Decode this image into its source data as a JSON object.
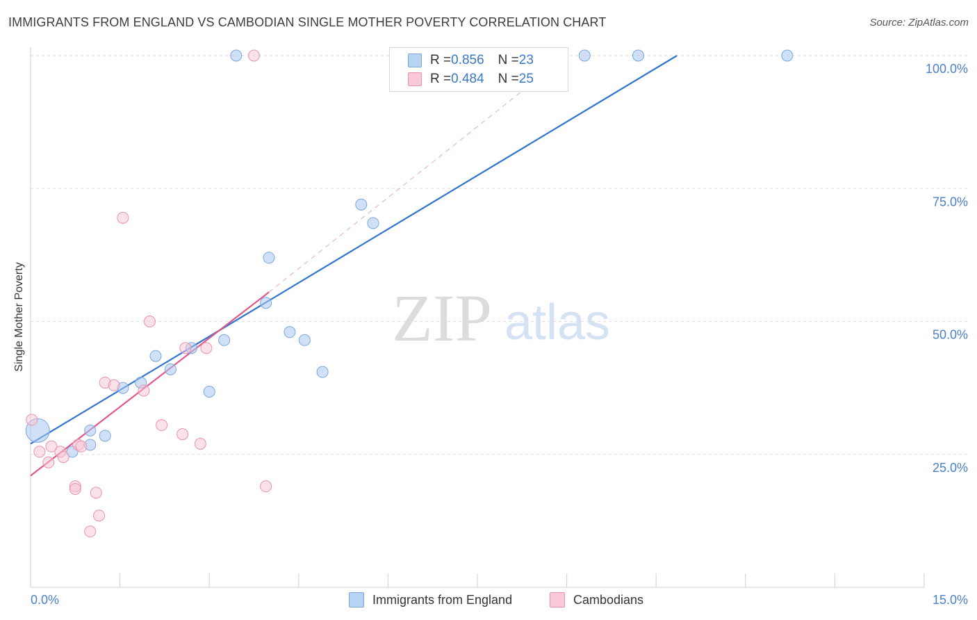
{
  "title": "IMMIGRANTS FROM ENGLAND VS CAMBODIAN SINGLE MOTHER POVERTY CORRELATION CHART",
  "source": "Source: ZipAtlas.com",
  "watermark": {
    "zip": "ZIP",
    "atlas": "atlas"
  },
  "legend_top": [
    {
      "r_label": "R = ",
      "r_value": "0.856",
      "n_label": "N = ",
      "n_value": "23"
    },
    {
      "r_label": "R = ",
      "r_value": "0.484",
      "n_label": "N = ",
      "n_value": "25"
    }
  ],
  "chart_data": {
    "type": "scatter",
    "title": "IMMIGRANTS FROM ENGLAND VS CAMBODIAN SINGLE MOTHER POVERTY CORRELATION CHART",
    "xlabel": "",
    "ylabel": "Single Mother Poverty",
    "xlim": [
      0,
      15
    ],
    "ylim": [
      0,
      103
    ],
    "x_tick_labels": [
      "0.0%",
      "15.0%"
    ],
    "y_ticks": [
      25,
      50,
      75,
      100
    ],
    "y_tick_labels": [
      "25.0%",
      "50.0%",
      "75.0%",
      "100.0%"
    ],
    "grid": true,
    "legend_position": "bottom",
    "series": [
      {
        "name": "Immigrants from England",
        "color": "#a9c8f0",
        "stroke": "#7aa6dc",
        "line_color": "#2f74cc",
        "r": "0.856",
        "n": "23",
        "points": [
          {
            "x": 0.12,
            "y": 29.5,
            "big": true
          },
          {
            "x": 0.7,
            "y": 25.5
          },
          {
            "x": 1.0,
            "y": 26.8
          },
          {
            "x": 1.0,
            "y": 29.5
          },
          {
            "x": 1.25,
            "y": 28.5
          },
          {
            "x": 1.55,
            "y": 37.5
          },
          {
            "x": 1.85,
            "y": 38.5
          },
          {
            "x": 2.1,
            "y": 43.5
          },
          {
            "x": 2.35,
            "y": 41.0
          },
          {
            "x": 2.7,
            "y": 45.0
          },
          {
            "x": 3.0,
            "y": 36.8
          },
          {
            "x": 3.25,
            "y": 46.5
          },
          {
            "x": 3.45,
            "y": 100.0
          },
          {
            "x": 3.95,
            "y": 53.5
          },
          {
            "x": 4.0,
            "y": 62.0
          },
          {
            "x": 4.35,
            "y": 48.0
          },
          {
            "x": 4.6,
            "y": 46.5
          },
          {
            "x": 4.9,
            "y": 40.5
          },
          {
            "x": 5.55,
            "y": 72.0
          },
          {
            "x": 5.75,
            "y": 68.5
          },
          {
            "x": 9.3,
            "y": 100.0
          },
          {
            "x": 10.2,
            "y": 100.0
          },
          {
            "x": 12.7,
            "y": 100.0
          }
        ],
        "trend": {
          "x0": 0.0,
          "y0": 27.0,
          "x1": 10.85,
          "y1": 100.0
        }
      },
      {
        "name": "Cambodians",
        "color": "#f7c3d3",
        "stroke": "#e892ad",
        "line_color": "#e0578a",
        "r": "0.484",
        "n": "25",
        "points": [
          {
            "x": 0.02,
            "y": 31.5
          },
          {
            "x": 0.15,
            "y": 25.5
          },
          {
            "x": 0.3,
            "y": 23.5
          },
          {
            "x": 0.35,
            "y": 26.5
          },
          {
            "x": 0.5,
            "y": 25.5
          },
          {
            "x": 0.55,
            "y": 24.5
          },
          {
            "x": 0.75,
            "y": 19.0
          },
          {
            "x": 0.75,
            "y": 18.5
          },
          {
            "x": 0.8,
            "y": 26.8
          },
          {
            "x": 0.85,
            "y": 26.5
          },
          {
            "x": 1.0,
            "y": 10.5
          },
          {
            "x": 1.1,
            "y": 17.8
          },
          {
            "x": 1.15,
            "y": 13.5
          },
          {
            "x": 1.25,
            "y": 38.5
          },
          {
            "x": 1.4,
            "y": 38.0
          },
          {
            "x": 1.55,
            "y": 69.5
          },
          {
            "x": 1.9,
            "y": 37.0
          },
          {
            "x": 2.0,
            "y": 50.0
          },
          {
            "x": 2.2,
            "y": 30.5
          },
          {
            "x": 2.55,
            "y": 28.8
          },
          {
            "x": 2.6,
            "y": 45.0
          },
          {
            "x": 2.85,
            "y": 27.0
          },
          {
            "x": 2.95,
            "y": 45.0
          },
          {
            "x": 3.75,
            "y": 100.0
          },
          {
            "x": 3.95,
            "y": 19.0
          }
        ],
        "trend": {
          "x0": 0.0,
          "y0": 21.0,
          "x1": 4.0,
          "y1": 55.5
        },
        "trend_dashed": {
          "x0": 4.0,
          "y0": 55.5,
          "x1": 9.0,
          "y1": 100.0
        }
      }
    ]
  }
}
